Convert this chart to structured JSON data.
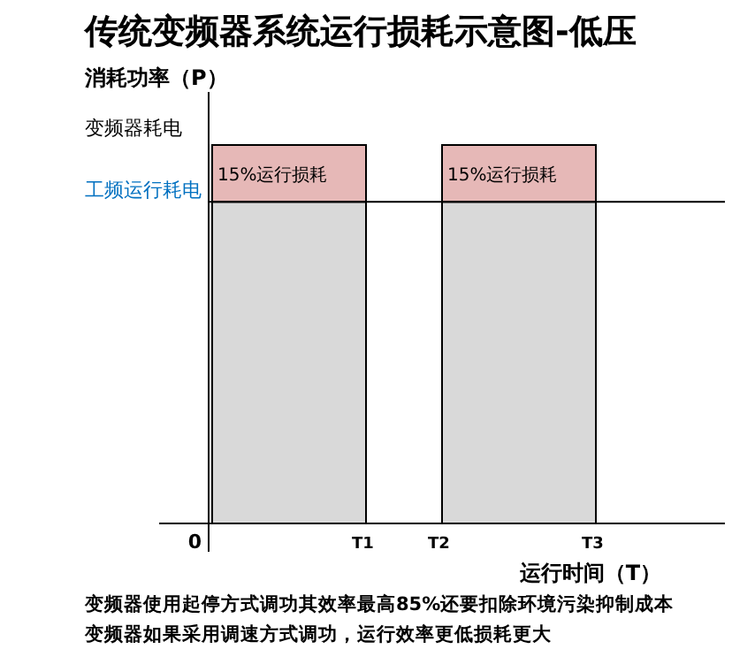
{
  "chart_data": {
    "type": "bar",
    "title": "传统变频器系统运行损耗示意图-低压",
    "ylabel": "消耗功率（P）",
    "xlabel": "运行时间（T）",
    "categories": [
      null,
      null
    ],
    "stacked": true,
    "series": [
      {
        "color": "#d9d9d9",
        "values": [
          85,
          85
        ]
      },
      {
        "color": "#e6b8b7",
        "values": [
          15,
          15
        ],
        "value_labels": [
          "15%运行损耗",
          "15%运行损耗"
        ]
      }
    ],
    "ref_lines": [
      {
        "axis": "y",
        "value": 85,
        "label": "工频运行耗电"
      }
    ],
    "annotations": [
      "变频器耗电",
      "0",
      "T1",
      "T2",
      "T3",
      "变频器使用起停方式调功其效率最高85%还要扣除环境污染抑制成本",
      "变频器如果采用调速方式调功，运行效率更低损耗更大"
    ]
  }
}
